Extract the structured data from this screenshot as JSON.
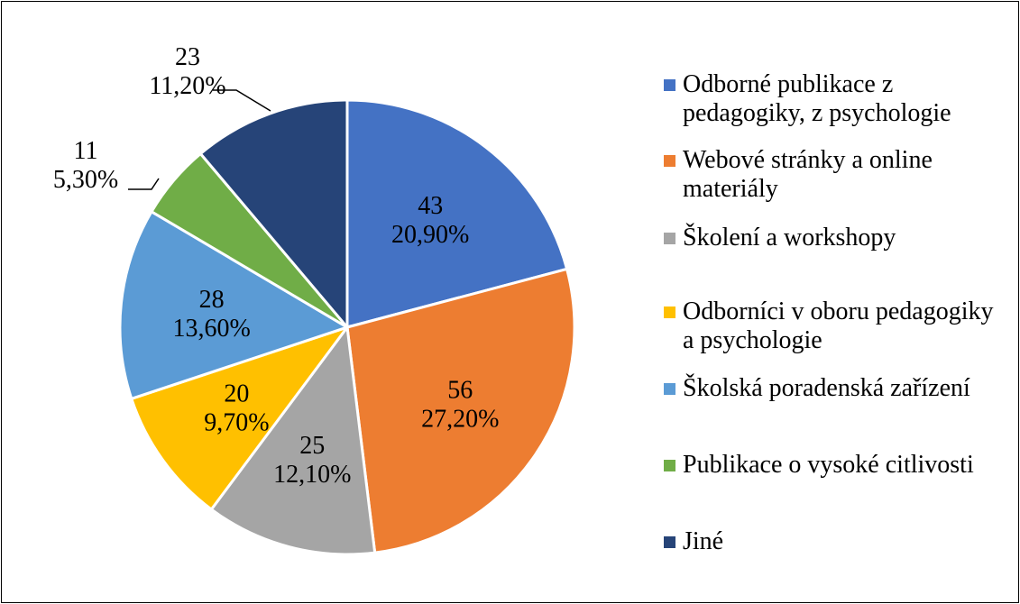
{
  "chart_data": {
    "type": "pie",
    "categories": [
      "Odborné publikace z pedagogiky, z psychologie",
      "Webové stránky a online materiály",
      "Školení a workshopy",
      "Odborníci v oboru pedagogiky a psychologie",
      "Školská poradenská zařízení",
      "Publikace o vysoké citlivosti",
      "Jiné"
    ],
    "values": [
      43,
      56,
      25,
      20,
      28,
      11,
      23
    ],
    "percents": [
      20.9,
      27.2,
      12.1,
      9.7,
      13.6,
      5.3,
      11.2
    ],
    "percent_labels": [
      "20,90%",
      "27,20%",
      "12,10%",
      "9,70%",
      "13,60%",
      "5,30%",
      "11,20%"
    ],
    "colors": [
      "#4472c4",
      "#ed7d31",
      "#a5a5a5",
      "#ffc000",
      "#5b9bd5",
      "#70ad47",
      "#264478"
    ],
    "legend": "right"
  }
}
